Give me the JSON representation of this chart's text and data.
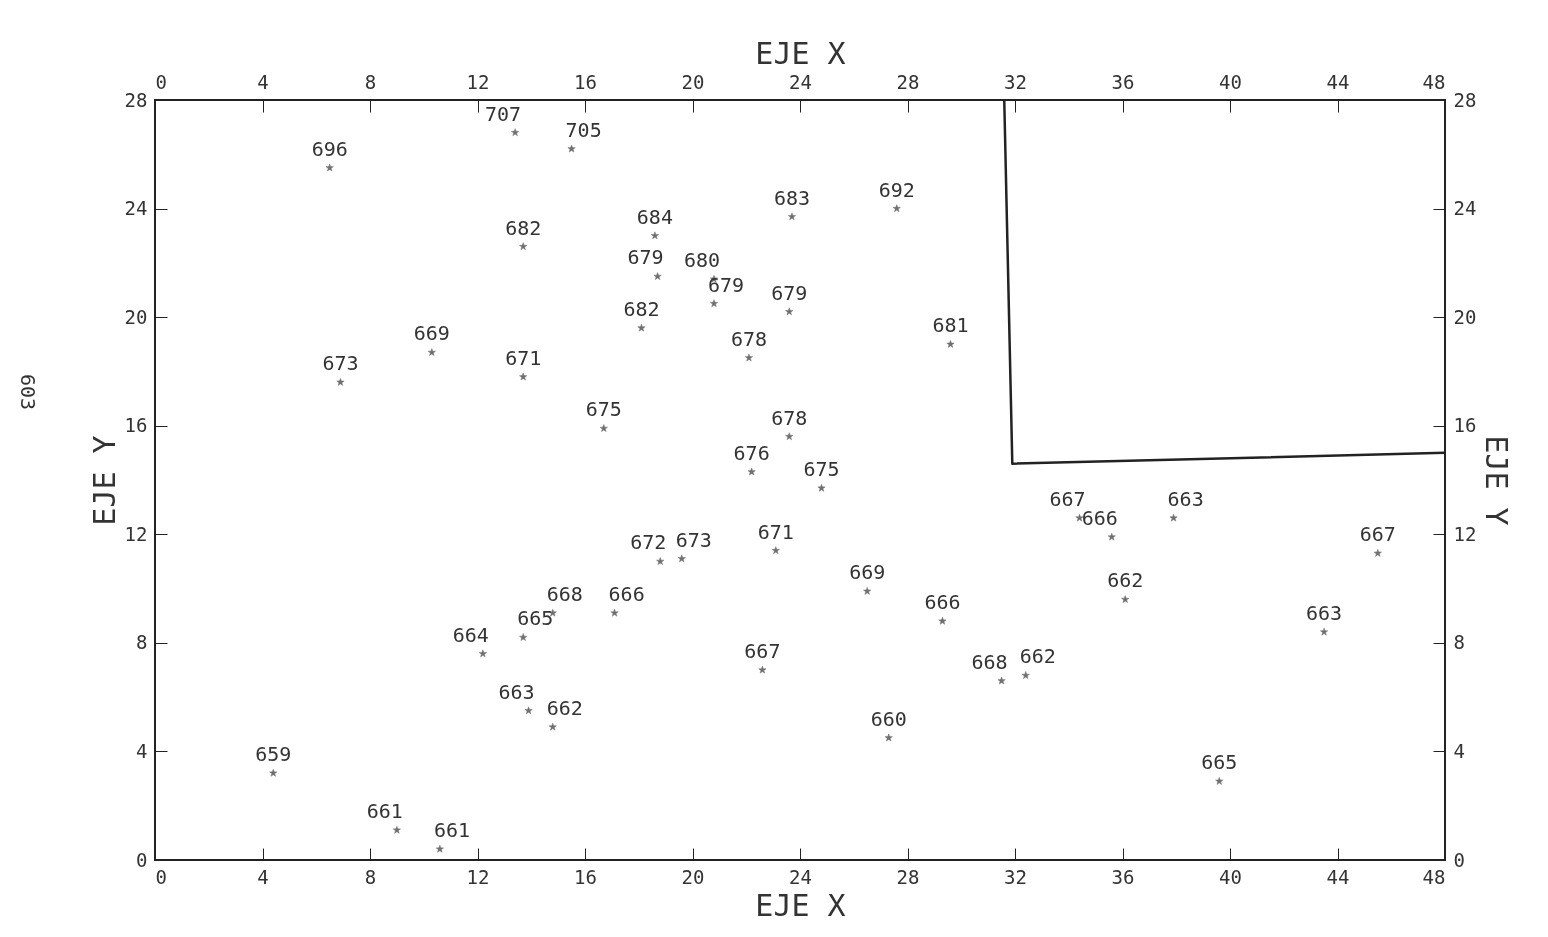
{
  "chart_data": {
    "type": "scatter",
    "xlabel": "EJE X",
    "ylabel": "EJE Y",
    "x2label": "EJE X",
    "y2label": "EJE Y",
    "xlim": [
      0,
      48
    ],
    "xticks": [
      0,
      4,
      8,
      12,
      16,
      20,
      24,
      28,
      32,
      36,
      40,
      44,
      48
    ],
    "ylim": [
      0,
      28
    ],
    "yticks": [
      0,
      4,
      8,
      12,
      16,
      20,
      24,
      28
    ],
    "x2lim": [
      0,
      48
    ],
    "x2ticks": [
      0,
      4,
      8,
      12,
      16,
      20,
      24,
      28,
      32,
      36,
      40,
      44,
      48
    ],
    "y2lim": [
      0,
      28
    ],
    "y2ticks": [
      0,
      4,
      8,
      12,
      16,
      20,
      24,
      28
    ],
    "marker": "star",
    "grid": false,
    "series": [
      {
        "color": "#333333",
        "x": [
          6.5,
          13.4,
          15.5,
          13.7,
          18.6,
          23.7,
          27.6,
          18.7,
          20.8,
          20.8,
          23.6,
          18.1,
          22.1,
          29.6,
          10.3,
          6.9,
          13.7,
          16.7,
          23.6,
          22.2,
          24.8,
          34.4,
          35.6,
          37.9,
          45.5,
          23.1,
          18.8,
          19.6,
          26.5,
          36.1,
          14.8,
          17.1,
          13.7,
          12.2,
          29.3,
          43.5,
          22.6,
          31.5,
          32.4,
          13.9,
          14.8,
          27.3,
          4.4,
          39.6,
          9.0,
          10.6
        ],
        "values": [
          25.5,
          26.8,
          26.2,
          22.6,
          23.0,
          23.7,
          24.0,
          21.5,
          21.4,
          20.5,
          20.2,
          19.6,
          18.5,
          19.0,
          18.7,
          17.6,
          17.8,
          15.9,
          15.6,
          14.3,
          13.7,
          12.6,
          11.9,
          12.6,
          11.3,
          11.4,
          11.0,
          11.1,
          9.9,
          9.6,
          9.1,
          9.1,
          8.2,
          7.6,
          8.8,
          8.4,
          7.0,
          6.6,
          6.8,
          5.5,
          4.9,
          4.5,
          3.2,
          2.9,
          1.1,
          0.4
        ]
      },
      {
        "type": "line",
        "color": "#222222",
        "marker": "none",
        "line_style": "solid",
        "x": [
          31.6,
          31.9,
          48
        ],
        "values": [
          28,
          14.6,
          15.0
        ]
      }
    ],
    "annotations": [
      "603",
      {
        "text": "696",
        "x": 6.5,
        "y": 25.5
      },
      {
        "text": "707",
        "x": 13.4,
        "y": 26.8
      },
      {
        "text": "705",
        "x": 15.5,
        "y": 26.2
      },
      {
        "text": "682",
        "x": 13.7,
        "y": 22.6
      },
      {
        "text": "684",
        "x": 18.6,
        "y": 23.0
      },
      {
        "text": "683",
        "x": 23.7,
        "y": 23.7
      },
      {
        "text": "692",
        "x": 27.6,
        "y": 24.0
      },
      {
        "text": "679",
        "x": 18.7,
        "y": 21.5
      },
      {
        "text": "680",
        "x": 20.8,
        "y": 21.4
      },
      {
        "text": "679",
        "x": 20.8,
        "y": 20.5
      },
      {
        "text": "679",
        "x": 23.6,
        "y": 20.2
      },
      {
        "text": "682",
        "x": 18.1,
        "y": 19.6
      },
      {
        "text": "678",
        "x": 22.1,
        "y": 18.5
      },
      {
        "text": "681",
        "x": 29.6,
        "y": 19.0
      },
      {
        "text": "669",
        "x": 10.3,
        "y": 18.7
      },
      {
        "text": "673",
        "x": 6.9,
        "y": 17.6
      },
      {
        "text": "671",
        "x": 13.7,
        "y": 17.8
      },
      {
        "text": "675",
        "x": 16.7,
        "y": 15.9
      },
      {
        "text": "678",
        "x": 23.6,
        "y": 15.6
      },
      {
        "text": "676",
        "x": 22.2,
        "y": 14.3
      },
      {
        "text": "675",
        "x": 24.8,
        "y": 13.7
      },
      {
        "text": "667",
        "x": 34.4,
        "y": 12.6
      },
      {
        "text": "666",
        "x": 35.6,
        "y": 11.9
      },
      {
        "text": "663",
        "x": 37.9,
        "y": 12.6
      },
      {
        "text": "667",
        "x": 45.5,
        "y": 11.3
      },
      {
        "text": "671",
        "x": 23.1,
        "y": 11.4
      },
      {
        "text": "672",
        "x": 18.8,
        "y": 11.0
      },
      {
        "text": "673",
        "x": 19.6,
        "y": 11.1
      },
      {
        "text": "669",
        "x": 26.5,
        "y": 9.9
      },
      {
        "text": "662",
        "x": 36.1,
        "y": 9.6
      },
      {
        "text": "668",
        "x": 14.8,
        "y": 9.1
      },
      {
        "text": "666",
        "x": 17.1,
        "y": 9.1
      },
      {
        "text": "665",
        "x": 13.7,
        "y": 8.2
      },
      {
        "text": "664",
        "x": 12.2,
        "y": 7.6
      },
      {
        "text": "666",
        "x": 29.3,
        "y": 8.8
      },
      {
        "text": "663",
        "x": 43.5,
        "y": 8.4
      },
      {
        "text": "667",
        "x": 22.6,
        "y": 7.0
      },
      {
        "text": "668",
        "x": 31.5,
        "y": 6.6
      },
      {
        "text": "662",
        "x": 32.4,
        "y": 6.8
      },
      {
        "text": "663",
        "x": 13.9,
        "y": 5.5
      },
      {
        "text": "662",
        "x": 14.8,
        "y": 4.9
      },
      {
        "text": "660",
        "x": 27.3,
        "y": 4.5
      },
      {
        "text": "659",
        "x": 4.4,
        "y": 3.2
      },
      {
        "text": "665",
        "x": 39.6,
        "y": 2.9
      },
      {
        "text": "661",
        "x": 9.0,
        "y": 1.1
      },
      {
        "text": "661",
        "x": 10.6,
        "y": 0.4
      }
    ]
  }
}
